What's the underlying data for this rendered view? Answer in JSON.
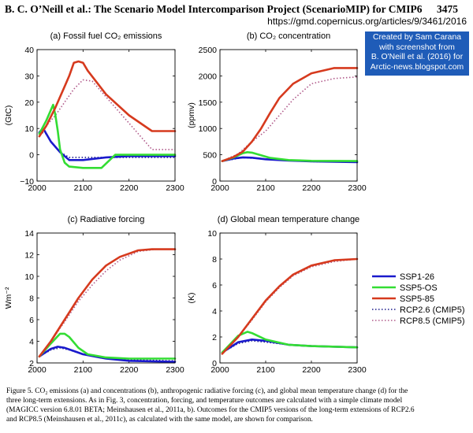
{
  "header": {
    "title": "B. C. O’Neill et al.: The Scenario Model Intercomparison Project (ScenarioMIP) for CMIP6",
    "page": "3475",
    "url": "https://gmd.copernicus.org/articles/9/3461/2016"
  },
  "credit": {
    "lines": [
      "Created by Sam Carana",
      "with screenshot from",
      "B. O'Neill et al. (2016) for",
      "Arctic-news.blogspot.com"
    ],
    "bg": "#1f5cb8"
  },
  "legend": {
    "items": [
      {
        "label": "SSP1-26",
        "color": "#1a1acc",
        "style": "solid"
      },
      {
        "label": "SSP5-OS",
        "color": "#33dd33",
        "style": "solid"
      },
      {
        "label": "SSP5-85",
        "color": "#d63a1e",
        "style": "solid"
      },
      {
        "label": "RCP2.6 (CMIP5)",
        "color": "#1a1a8c",
        "style": "dotted"
      },
      {
        "label": "RCP8.5 (CMIP5)",
        "color": "#b05a8a",
        "style": "dotted"
      }
    ]
  },
  "caption": {
    "lines": [
      "Figure 5. CO₂ emissions (a) and concentrations (b), anthropogenic radiative forcing (c), and global mean temperature change (d) for the",
      "three long-term extensions. As in Fig. 3, concentration, forcing, and temperature outcomes are calculated with a simple climate model",
      "(MAGICC version 6.8.01 BETA; Meinshausen et al., 2011a, b). Outcomes for the CMIP5 versions of the long-term extensions of RCP2.6",
      "and RCP8.5 (Meinshausen et al., 2011c), as calculated with the same model, are shown for comparison."
    ]
  },
  "chart_data": [
    {
      "type": "line",
      "title": "(a) Fossil fuel CO₂ emissions",
      "ylabel": "(GtC)",
      "xlim": [
        2000,
        2300
      ],
      "ylim": [
        -10,
        40
      ],
      "xticks": [
        "2000",
        "2100",
        "2200",
        "2300"
      ],
      "yticks": [
        "−10",
        "0",
        "10",
        "20",
        "30",
        "40"
      ],
      "series": [
        {
          "name": "RCP8.5 (CMIP5)",
          "x": [
            2005,
            2020,
            2040,
            2060,
            2080,
            2100,
            2120,
            2150,
            2200,
            2250,
            2300
          ],
          "y": [
            8,
            11,
            15,
            20,
            25,
            28.5,
            28,
            22,
            12,
            2,
            2
          ]
        },
        {
          "name": "RCP2.6 (CMIP5)",
          "x": [
            2005,
            2010,
            2020,
            2030,
            2050,
            2070,
            2100,
            2150,
            2200,
            2250,
            2300
          ],
          "y": [
            8,
            8.5,
            8,
            5,
            1,
            -1,
            -1,
            -1,
            -1,
            -1,
            -1
          ]
        },
        {
          "name": "SSP1-26",
          "x": [
            2005,
            2010,
            2015,
            2020,
            2030,
            2050,
            2070,
            2100,
            2150,
            2200,
            2300
          ],
          "y": [
            8.5,
            9.5,
            9.5,
            8,
            5,
            1,
            -2,
            -2,
            -1,
            -0.5,
            -0.5
          ]
        },
        {
          "name": "SSP5-OS",
          "x": [
            2005,
            2020,
            2035,
            2040,
            2045,
            2050,
            2060,
            2070,
            2100,
            2120,
            2140,
            2170,
            2180,
            2200,
            2300
          ],
          "y": [
            8,
            13,
            19,
            15,
            9,
            2,
            -3,
            -4.5,
            -5,
            -5,
            -5,
            0,
            0,
            0,
            0
          ]
        },
        {
          "name": "SSP5-85",
          "x": [
            2005,
            2020,
            2040,
            2060,
            2070,
            2080,
            2090,
            2100,
            2110,
            2150,
            2200,
            2250,
            2300
          ],
          "y": [
            7,
            11,
            18,
            26,
            30,
            35,
            35.5,
            35,
            32,
            23,
            15,
            9,
            9
          ]
        }
      ]
    },
    {
      "type": "line",
      "title": "(b) CO₂ concentration",
      "ylabel": "(ppmv)",
      "xlim": [
        2000,
        2300
      ],
      "ylim": [
        0,
        2500
      ],
      "xticks": [
        "2000",
        "2100",
        "2200",
        "2300"
      ],
      "yticks": [
        "0",
        "500",
        "1000",
        "1500",
        "2000",
        "2500"
      ],
      "series": [
        {
          "name": "RCP8.5 (CMIP5)",
          "x": [
            2005,
            2040,
            2070,
            2100,
            2130,
            2160,
            2200,
            2250,
            2300
          ],
          "y": [
            380,
            520,
            750,
            950,
            1250,
            1550,
            1850,
            1950,
            1980
          ]
        },
        {
          "name": "RCP2.6 (CMIP5)",
          "x": [
            2005,
            2050,
            2100,
            2150,
            2200,
            2300
          ],
          "y": [
            380,
            445,
            420,
            395,
            370,
            360
          ]
        },
        {
          "name": "SSP1-26",
          "x": [
            2005,
            2030,
            2050,
            2070,
            2100,
            2150,
            2200,
            2300
          ],
          "y": [
            380,
            430,
            450,
            445,
            415,
            390,
            375,
            360
          ]
        },
        {
          "name": "SSP5-OS",
          "x": [
            2005,
            2030,
            2050,
            2060,
            2070,
            2090,
            2110,
            2150,
            2200,
            2300
          ],
          "y": [
            380,
            450,
            530,
            550,
            540,
            490,
            440,
            400,
            385,
            380
          ]
        },
        {
          "name": "SSP5-85",
          "x": [
            2005,
            2030,
            2050,
            2070,
            2090,
            2110,
            2130,
            2160,
            2200,
            2250,
            2300
          ],
          "y": [
            380,
            460,
            560,
            750,
            1000,
            1300,
            1580,
            1850,
            2050,
            2150,
            2150
          ]
        }
      ]
    },
    {
      "type": "line",
      "title": "(c) Radiative forcing",
      "ylabel": "Wm⁻²",
      "xlim": [
        2000,
        2300
      ],
      "ylim": [
        2,
        14
      ],
      "xticks": [
        "2000",
        "2100",
        "2200",
        "2300"
      ],
      "yticks": [
        "2",
        "4",
        "6",
        "8",
        "10",
        "12",
        "14"
      ],
      "series": [
        {
          "name": "RCP8.5 (CMIP5)",
          "x": [
            2005,
            2030,
            2060,
            2090,
            2120,
            2150,
            2180,
            2220,
            2260,
            2300
          ],
          "y": [
            2.6,
            4,
            5.8,
            7.7,
            9.2,
            10.5,
            11.5,
            12.3,
            12.5,
            12.5
          ]
        },
        {
          "name": "RCP2.6 (CMIP5)",
          "x": [
            2005,
            2030,
            2050,
            2070,
            2100,
            2150,
            2200,
            2300
          ],
          "y": [
            2.6,
            3.2,
            3.4,
            3.2,
            2.8,
            2.5,
            2.3,
            2.2
          ]
        },
        {
          "name": "SSP1-26",
          "x": [
            2005,
            2030,
            2045,
            2060,
            2080,
            2100,
            2150,
            2200,
            2300
          ],
          "y": [
            2.6,
            3.3,
            3.5,
            3.4,
            3.1,
            2.8,
            2.4,
            2.2,
            2.1
          ]
        },
        {
          "name": "SSP5-OS",
          "x": [
            2005,
            2030,
            2050,
            2060,
            2070,
            2090,
            2110,
            2150,
            2200,
            2300
          ],
          "y": [
            2.6,
            3.8,
            4.7,
            4.7,
            4.4,
            3.4,
            2.8,
            2.5,
            2.4,
            2.4
          ]
        },
        {
          "name": "SSP5-85",
          "x": [
            2005,
            2030,
            2060,
            2090,
            2120,
            2150,
            2180,
            2220,
            2250,
            2300
          ],
          "y": [
            2.6,
            4,
            6,
            8,
            9.7,
            11,
            11.8,
            12.4,
            12.5,
            12.5
          ]
        }
      ]
    },
    {
      "type": "line",
      "title": "(d) Global mean  temperature change",
      "ylabel": "(K)",
      "xlim": [
        2000,
        2300
      ],
      "ylim": [
        0,
        10
      ],
      "xticks": [
        "2000",
        "2100",
        "2200",
        "2300"
      ],
      "yticks": [
        "0",
        "2",
        "4",
        "6",
        "8",
        "10"
      ],
      "series": [
        {
          "name": "RCP8.5 (CMIP5)",
          "x": [
            2005,
            2040,
            2070,
            2100,
            2130,
            2160,
            2200,
            2250,
            2300
          ],
          "y": [
            0.8,
            2,
            3.3,
            4.7,
            5.8,
            6.7,
            7.4,
            7.8,
            8
          ]
        },
        {
          "name": "RCP2.6 (CMIP5)",
          "x": [
            2005,
            2040,
            2070,
            2100,
            2150,
            2200,
            2300
          ],
          "y": [
            0.8,
            1.5,
            1.7,
            1.6,
            1.4,
            1.3,
            1.2
          ]
        },
        {
          "name": "SSP1-26",
          "x": [
            2005,
            2040,
            2070,
            2100,
            2150,
            2200,
            2300
          ],
          "y": [
            0.8,
            1.6,
            1.8,
            1.7,
            1.4,
            1.3,
            1.2
          ]
        },
        {
          "name": "SSP5-OS",
          "x": [
            2005,
            2040,
            2060,
            2070,
            2100,
            2150,
            2200,
            2300
          ],
          "y": [
            0.8,
            2.1,
            2.4,
            2.3,
            1.8,
            1.4,
            1.3,
            1.2
          ]
        },
        {
          "name": "SSP5-85",
          "x": [
            2005,
            2040,
            2070,
            2100,
            2130,
            2160,
            2200,
            2250,
            2300
          ],
          "y": [
            0.7,
            2,
            3.4,
            4.8,
            5.9,
            6.8,
            7.5,
            7.9,
            8
          ]
        }
      ]
    }
  ]
}
